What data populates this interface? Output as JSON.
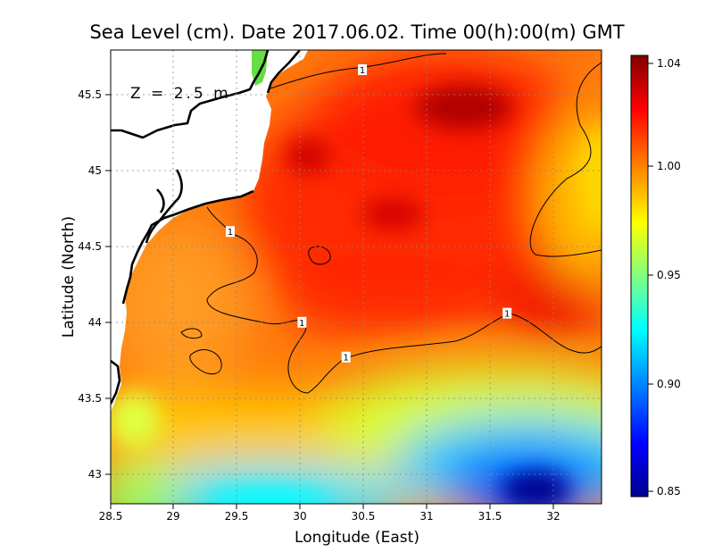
{
  "title": "Sea Level (cm). Date 2017.06.02. Time 00(h):00(m) GMT",
  "depth_label": "Z = 2.5 m",
  "xlabel": "Longitude (East)",
  "ylabel": "Latitude (North)",
  "colorbar": {
    "range": [
      0.85,
      1.04
    ],
    "ticks": [
      "1.04",
      "1.00",
      "0.95",
      "0.90",
      "0.85"
    ],
    "colors": [
      "#00008f",
      "#0000ff",
      "#0080ff",
      "#00ffff",
      "#80ff80",
      "#ffff00",
      "#ff8000",
      "#ff0000",
      "#800000"
    ]
  },
  "chart_data": {
    "type": "heatmap",
    "title": "Sea Level (cm). Date 2017.06.02. Time 00(h):00(m) GMT",
    "xlabel": "Longitude (East)",
    "ylabel": "Latitude (North)",
    "xlim": [
      28.5,
      32.4
    ],
    "ylim": [
      42.8,
      45.8
    ],
    "x_ticks": [
      "28.5",
      "29",
      "29.5",
      "30",
      "30.5",
      "31",
      "31.5",
      "32"
    ],
    "y_ticks": [
      "45.5",
      "45",
      "44.5",
      "44",
      "43.5",
      "43"
    ],
    "grid": true,
    "contour_level": 1,
    "contour_labels": [
      {
        "text": "1",
        "lon": 30.5,
        "lat": 45.67
      },
      {
        "text": "1",
        "lon": 29.45,
        "lat": 44.6
      },
      {
        "text": "1",
        "lon": 30.02,
        "lat": 44.0
      },
      {
        "text": "1",
        "lon": 30.37,
        "lat": 43.77
      },
      {
        "text": "1",
        "lon": 31.65,
        "lat": 44.06
      }
    ]
  }
}
